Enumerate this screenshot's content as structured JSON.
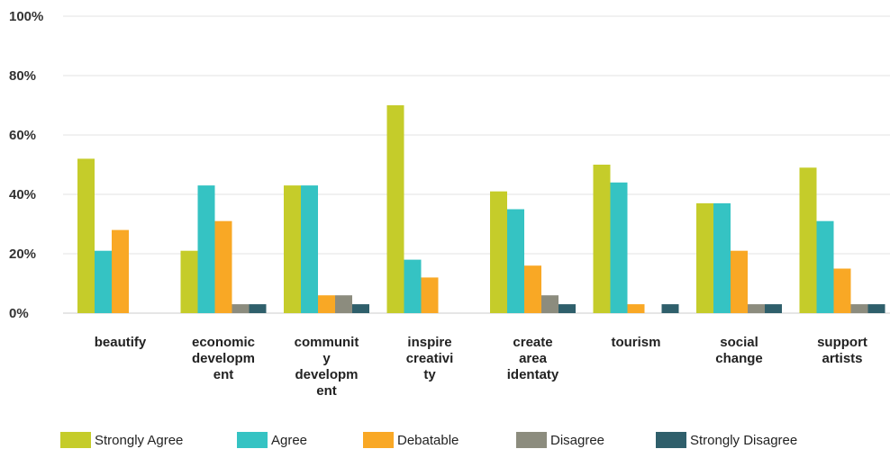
{
  "chart_data": {
    "type": "bar",
    "title": "",
    "xlabel": "",
    "ylabel": "",
    "ylim": [
      0,
      100
    ],
    "y_ticks": [
      "0%",
      "20%",
      "40%",
      "60%",
      "80%",
      "100%"
    ],
    "grid": true,
    "legend_position": "bottom",
    "categories": [
      [
        "beautify"
      ],
      [
        "economic",
        "developm",
        "ent"
      ],
      [
        "communit",
        "y",
        "developm",
        "ent"
      ],
      [
        "inspire",
        "creativi",
        "ty"
      ],
      [
        "create",
        "area",
        "identaty"
      ],
      [
        "tourism"
      ],
      [
        "social",
        "change"
      ],
      [
        "support",
        "artists"
      ]
    ],
    "series": [
      {
        "name": "Strongly Agree",
        "color": "#c5cc2a",
        "values": [
          52,
          21,
          43,
          70,
          41,
          50,
          37,
          49
        ]
      },
      {
        "name": "Agree",
        "color": "#35c3c3",
        "values": [
          21,
          43,
          43,
          18,
          35,
          44,
          37,
          31
        ]
      },
      {
        "name": "Debatable",
        "color": "#f9a825",
        "values": [
          28,
          31,
          6,
          12,
          16,
          3,
          21,
          15
        ]
      },
      {
        "name": "Disagree",
        "color": "#8c8c7e",
        "values": [
          0,
          3,
          6,
          0,
          6,
          0,
          3,
          3
        ]
      },
      {
        "name": "Strongly Disagree",
        "color": "#2f5f6b",
        "values": [
          0,
          3,
          3,
          0,
          3,
          3,
          3,
          3
        ]
      }
    ]
  }
}
